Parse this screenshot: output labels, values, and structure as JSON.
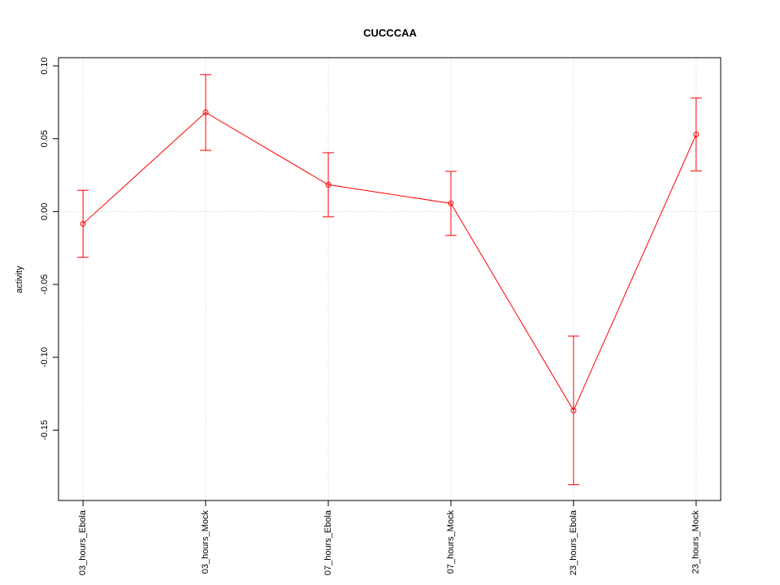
{
  "chart_data": {
    "type": "line",
    "title": "CUCCCAA",
    "y_label": "activity",
    "categories": [
      "03_hours_Ebola",
      "03_hours_Mock",
      "07_hours_Ebola",
      "07_hours_Mock",
      "23_hours_Ebola",
      "23_hours_Mock"
    ],
    "series": [
      {
        "name": "CUCCCAA",
        "color": "#ff0000",
        "values": [
          -0.0084,
          0.068,
          0.0184,
          0.0056,
          -0.1365,
          0.0529
        ],
        "errors": [
          0.023,
          0.026,
          0.022,
          0.022,
          0.051,
          0.025
        ]
      }
    ],
    "ylim": [
      -0.1983,
      0.1056
    ],
    "yticks": [
      {
        "value": -0.15,
        "label": "-0.15"
      },
      {
        "value": -0.1,
        "label": "-0.10"
      },
      {
        "value": -0.05,
        "label": "-0.05"
      },
      {
        "value": 0,
        "label": "0.00"
      },
      {
        "value": 0.05,
        "label": "0.05"
      },
      {
        "value": 0.1,
        "label": "0.10"
      }
    ],
    "hline": 0,
    "grid": true
  }
}
